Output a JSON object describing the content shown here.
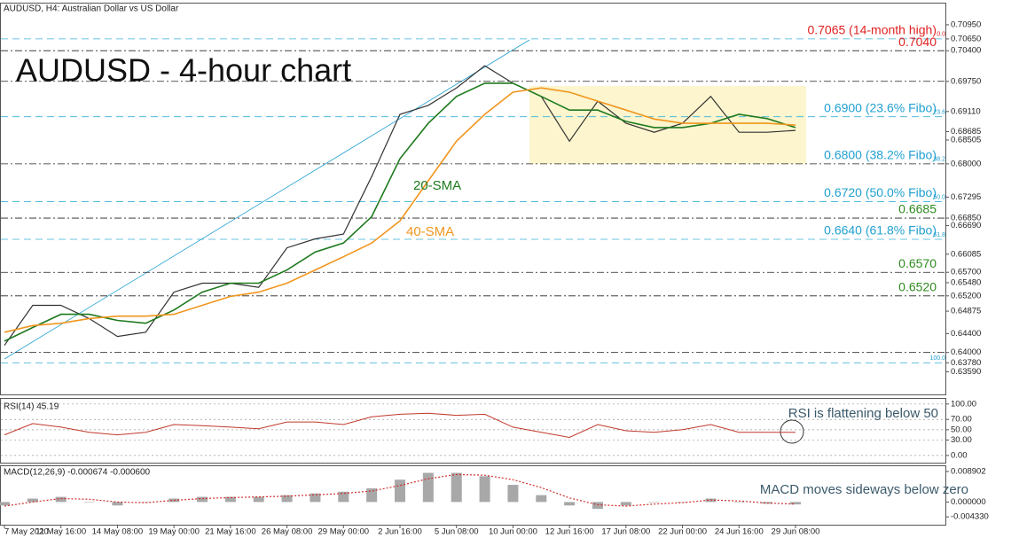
{
  "chart_data": [
    {
      "type": "line",
      "header": "AUDUSD, H4:  Australian Dollar vs US Dollar",
      "title": "AUDUSD - 4-hour chart",
      "categories": [
        "7 May 2020",
        null,
        "11 May 16:00",
        null,
        "14 May 08:00",
        null,
        "19 May 00:00",
        null,
        "21 May 16:00",
        null,
        "26 May 08:00",
        null,
        "29 May 00:00",
        null,
        "2 Jun 16:00",
        null,
        "5 Jun 08:00",
        null,
        "10 Jun 00:00",
        null,
        "12 Jun 16:00",
        null,
        "17 Jun 08:00",
        null,
        "22 Jun 00:00",
        null,
        "24 Jun 16:00",
        null,
        "29 Jun 08:00"
      ],
      "series": [
        {
          "color": "#333333",
          "values": [
            0.6415,
            0.65,
            0.65,
            0.6472,
            0.6434,
            0.6443,
            0.6528,
            0.6547,
            0.6547,
            0.6538,
            0.6622,
            0.6641,
            0.6651,
            0.6773,
            0.6905,
            0.6924,
            0.6961,
            0.7008,
            0.6971,
            0.6943,
            0.6848,
            0.6933,
            0.6886,
            0.6867,
            0.6886,
            0.6943,
            0.6867,
            0.6867,
            0.6871
          ]
        },
        {
          "name": "20-SMA",
          "color": "#1e7a1e",
          "values": [
            0.6424,
            0.6453,
            0.6481,
            0.6481,
            0.6468,
            0.6462,
            0.649,
            0.6528,
            0.6547,
            0.6547,
            0.6575,
            0.6613,
            0.6632,
            0.6688,
            0.6811,
            0.6886,
            0.6943,
            0.6971,
            0.6971,
            0.6943,
            0.6914,
            0.6914,
            0.689,
            0.6877,
            0.6877,
            0.6886,
            0.6905,
            0.6896,
            0.6877
          ]
        },
        {
          "name": "40-SMA",
          "color": "#f0961e",
          "values": [
            0.6443,
            0.6457,
            0.6462,
            0.6472,
            0.6477,
            0.6477,
            0.6481,
            0.65,
            0.6519,
            0.6528,
            0.6547,
            0.6575,
            0.6603,
            0.6632,
            0.6679,
            0.6764,
            0.6848,
            0.6905,
            0.6952,
            0.6961,
            0.6952,
            0.6933,
            0.6914,
            0.6895,
            0.6886,
            0.6886,
            0.6886,
            0.6886,
            0.6882
          ]
        }
      ],
      "levels": [
        {
          "value": 0.7065,
          "label": "0.7065 (14-month high)",
          "fibo": "0.0",
          "color": "#e02020",
          "line": "dashed"
        },
        {
          "value": 0.704,
          "label": "0.7040",
          "color": "#e02020",
          "line": "dash-dot"
        },
        {
          "value": 0.6975,
          "line": "dash-dot"
        },
        {
          "value": 0.69,
          "label": "0.6900 (23.6% Fibo)",
          "fibo": "23.6",
          "color": "#22a0d0",
          "line": "dashed"
        },
        {
          "value": 0.68,
          "label": "0.6800 (38.2% Fibo)",
          "fibo": "38.2",
          "color": "#22a0d0",
          "line": "dash-dot"
        },
        {
          "value": 0.672,
          "label": "0.6720 (50.0% Fibo)",
          "fibo": "50.0",
          "color": "#22a0d0",
          "line": "dashed"
        },
        {
          "value": 0.6685,
          "label": "0.6685",
          "color": "#2e8b1f",
          "line": "dash-dot"
        },
        {
          "value": 0.664,
          "label": "0.6640 (61.8% Fibo)",
          "fibo": "61.8",
          "color": "#22a0d0",
          "line": "dashed"
        },
        {
          "value": 0.657,
          "label": "0.6570",
          "color": "#2e8b1f",
          "line": "dash-dot"
        },
        {
          "value": 0.652,
          "label": "0.6520",
          "color": "#2e8b1f",
          "line": "dash-dot"
        },
        {
          "value": 0.64,
          "line": "dash-dot"
        },
        {
          "value": 0.6378,
          "fibo": "100.0",
          "color": "#22a0d0",
          "line": "dashed"
        }
      ],
      "ylim": [
        0.6311,
        0.714
      ],
      "yticks": [
        {
          "value": 0.7095,
          "label": "0.70950"
        },
        {
          "value": 0.7065,
          "label": "0.70650"
        },
        {
          "value": 0.704,
          "label": "0.70400"
        },
        {
          "value": 0.6975,
          "label": "0.69750"
        },
        {
          "value": 0.6911,
          "label": "0.69110"
        },
        {
          "value": 0.68685,
          "label": "0.68685"
        },
        {
          "value": 0.68505,
          "label": "0.68505"
        },
        {
          "value": 0.68,
          "label": "0.68000"
        },
        {
          "value": 0.67295,
          "label": "0.67295"
        },
        {
          "value": 0.6685,
          "label": "0.66850"
        },
        {
          "value": 0.6669,
          "label": "0.66690"
        },
        {
          "value": 0.66085,
          "label": "0.66085"
        },
        {
          "value": 0.657,
          "label": "0.65700"
        },
        {
          "value": 0.6548,
          "label": "0.65480"
        },
        {
          "value": 0.652,
          "label": "0.65200"
        },
        {
          "value": 0.64875,
          "label": "0.64875"
        },
        {
          "value": 0.644,
          "label": "0.64400"
        },
        {
          "value": 0.64,
          "label": "0.64000"
        },
        {
          "value": 0.6378,
          "label": "0.63780"
        },
        {
          "value": 0.6359,
          "label": "0.63590"
        }
      ],
      "grid": false
    },
    {
      "type": "line",
      "title": "RSI(14) 45.19",
      "annotation": "RSI is flattening below 50",
      "series": [
        {
          "color": "#c0392b",
          "values": [
            40,
            62,
            55,
            45,
            40,
            45,
            60,
            58,
            55,
            52,
            65,
            65,
            60,
            75,
            80,
            82,
            78,
            80,
            55,
            45,
            35,
            60,
            48,
            45,
            50,
            60,
            45,
            45,
            45
          ]
        }
      ],
      "ylim": [
        -14,
        110
      ],
      "yticks": [
        {
          "value": 100,
          "label": "100.00"
        },
        {
          "value": 70,
          "label": "70.00"
        },
        {
          "value": 50,
          "label": "50.00"
        },
        {
          "value": 30,
          "label": "30.00"
        },
        {
          "value": 0,
          "label": "0.00"
        }
      ],
      "grid": true
    },
    {
      "type": "bar",
      "title": "MACD(12,26,9) -0.000674 -0.000600",
      "annotation": "MACD moves sideways below zero",
      "series": [
        {
          "type": "bar",
          "color": "#a8a8a8",
          "values": [
            -0.001,
            0.001,
            0.0015,
            0,
            -0.001,
            0,
            0.001,
            0.0015,
            0.0015,
            0.0015,
            0.002,
            0.0025,
            0.003,
            0.004,
            0.0065,
            0.0085,
            0.0085,
            0.0075,
            0.005,
            0.002,
            -0.001,
            -0.002,
            -0.001,
            0,
            0,
            0.001,
            0,
            -0.0005,
            -0.0007
          ]
        },
        {
          "type": "line",
          "color": "#d03030",
          "values": [
            -0.0012,
            0,
            0.001,
            0.0008,
            0,
            -0.0002,
            0.0005,
            0.001,
            0.0013,
            0.0015,
            0.0017,
            0.0021,
            0.0025,
            0.0032,
            0.0048,
            0.0068,
            0.008,
            0.0078,
            0.0065,
            0.0042,
            0.0012,
            -0.0008,
            -0.0012,
            -0.0006,
            -0.0002,
            0.0006,
            0.0003,
            -0.0003,
            -0.0006
          ]
        }
      ],
      "ylim": [
        -0.00661,
        0.01043
      ],
      "yticks": [
        {
          "value": 0.008902,
          "label": "0.008902"
        },
        {
          "value": 0,
          "label": "0.000000"
        },
        {
          "value": -0.00433,
          "label": "-0.004330"
        }
      ],
      "grid": false
    }
  ]
}
